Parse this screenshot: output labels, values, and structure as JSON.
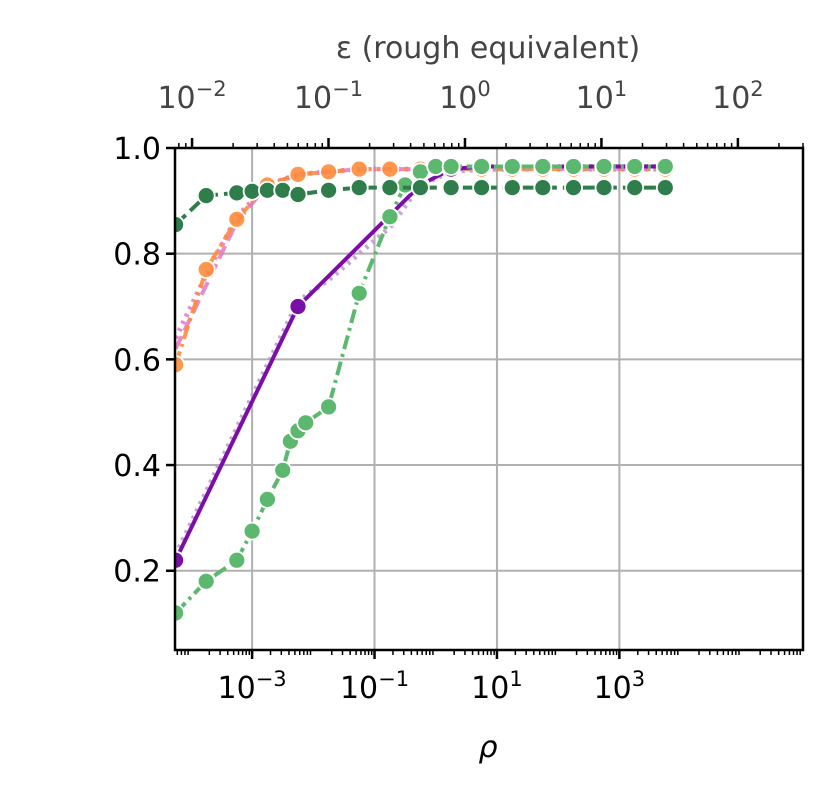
{
  "chart_data": {
    "type": "line",
    "title": "",
    "xlabel": "ρ",
    "ylabel": "",
    "top_xlabel": "ε (rough equivalent)",
    "x_scale": "log",
    "xlim": [
      5.5e-05,
      1000000
    ],
    "ylim": [
      0.05,
      1.0
    ],
    "x_ticks": [
      {
        "value": 0.001,
        "base": "10",
        "exp": "−3"
      },
      {
        "value": 0.1,
        "base": "10",
        "exp": "−1"
      },
      {
        "value": 10,
        "base": "10",
        "exp": "1"
      },
      {
        "value": 1000,
        "base": "10",
        "exp": "3"
      }
    ],
    "y_ticks": [
      {
        "value": 0.2,
        "label": "0.2"
      },
      {
        "value": 0.4,
        "label": "0.4"
      },
      {
        "value": 0.6,
        "label": "0.6"
      },
      {
        "value": 0.8,
        "label": "0.8"
      },
      {
        "value": 1.0,
        "label": "1.0"
      }
    ],
    "top_axis": {
      "scale": "log",
      "xlim": [
        0.0075,
        300
      ],
      "ticks": [
        {
          "value": 0.01,
          "base": "10",
          "exp": "−2"
        },
        {
          "value": 0.1,
          "base": "10",
          "exp": "−1"
        },
        {
          "value": 1,
          "base": "10",
          "exp": "0"
        },
        {
          "value": 10,
          "base": "10",
          "exp": "1"
        },
        {
          "value": 100,
          "base": "10",
          "exp": "2"
        }
      ]
    },
    "grid": true,
    "series": [
      {
        "color": "#e377c2",
        "line_style": "dashed",
        "alpha": 0.85,
        "x": [
          5.62e-05,
          0.000178,
          0.000562,
          0.00178,
          0.00562,
          0.0178,
          0.0562,
          0.178,
          0.562,
          1.78,
          5.62,
          17.8,
          56.2,
          178,
          562,
          1780,
          5620
        ],
        "y": [
          0.62,
          0.74,
          0.86,
          0.93,
          0.95,
          0.955,
          0.96,
          0.96,
          0.96,
          0.96,
          0.96,
          0.96,
          0.96,
          0.96,
          0.96,
          0.96,
          0.96
        ]
      },
      {
        "color": "#e377c2",
        "line_style": "dotted",
        "alpha": 0.85,
        "x": [
          5.62e-05,
          0.000178,
          0.000562,
          0.00178,
          0.00562,
          0.0178,
          0.0562,
          0.178,
          0.562,
          1.78,
          5.62,
          17.8,
          56.2,
          178,
          562,
          1780,
          5620
        ],
        "y": [
          0.64,
          0.76,
          0.87,
          0.93,
          0.95,
          0.955,
          0.96,
          0.96,
          0.96,
          0.96,
          0.96,
          0.96,
          0.96,
          0.96,
          0.96,
          0.96,
          0.96
        ]
      },
      {
        "color": "#ff8c3a",
        "line_style": "dashdot",
        "alpha": 0.9,
        "markers": true,
        "x": [
          5.62e-05,
          0.000178,
          0.000562,
          0.00178,
          0.00562,
          0.0178,
          0.0562,
          0.178,
          0.562,
          1.78,
          5.62,
          17.8,
          56.2,
          178,
          562,
          1780,
          5620
        ],
        "y": [
          0.59,
          0.77,
          0.865,
          0.93,
          0.95,
          0.955,
          0.96,
          0.96,
          0.96,
          0.96,
          0.96,
          0.96,
          0.96,
          0.96,
          0.96,
          0.96,
          0.96
        ]
      },
      {
        "color": "#c39bd3",
        "line_style": "dotted",
        "alpha": 0.9,
        "x": [
          5.62e-05,
          0.00562,
          0.0178,
          0.0562,
          0.178,
          0.562,
          1.78,
          5.62,
          17.8,
          56.2,
          178,
          562,
          1780,
          5620
        ],
        "y": [
          0.23,
          0.71,
          0.75,
          0.8,
          0.85,
          0.93,
          0.955,
          0.96,
          0.96,
          0.965,
          0.965,
          0.965,
          0.965,
          0.965
        ]
      },
      {
        "color": "#7a0fa8",
        "line_style": "solid",
        "alpha": 1.0,
        "markers": true,
        "x": [
          5.62e-05,
          0.00562,
          0.562,
          1.78,
          5.62,
          17.8,
          56.2,
          178,
          562,
          1780,
          5620
        ],
        "y": [
          0.22,
          0.7,
          0.93,
          0.96,
          0.965,
          0.965,
          0.965,
          0.965,
          0.965,
          0.965,
          0.965
        ]
      },
      {
        "color": "#5cb86e",
        "line_style": "dashdot",
        "alpha": 1.0,
        "markers": true,
        "x": [
          5.62e-05,
          0.000178,
          0.000562,
          0.001,
          0.00178,
          0.00316,
          0.00422,
          0.00562,
          0.0075,
          0.0178,
          0.0562,
          0.178,
          0.316,
          0.562,
          1.0,
          1.78,
          5.62,
          17.8,
          56.2,
          178,
          562,
          1780,
          5620
        ],
        "y": [
          0.12,
          0.18,
          0.22,
          0.275,
          0.335,
          0.39,
          0.445,
          0.465,
          0.48,
          0.51,
          0.725,
          0.87,
          0.93,
          0.955,
          0.965,
          0.965,
          0.965,
          0.965,
          0.965,
          0.965,
          0.965,
          0.965,
          0.965
        ]
      },
      {
        "color": "#2e7d4a",
        "line_style": "dashed",
        "alpha": 1.0,
        "markers": true,
        "x": [
          5.62e-05,
          0.000178,
          0.000562,
          0.001,
          0.00178,
          0.00316,
          0.00562,
          0.0178,
          0.0562,
          0.178,
          0.562,
          1.78,
          5.62,
          17.8,
          56.2,
          178,
          562,
          1780,
          5620
        ],
        "y": [
          0.855,
          0.91,
          0.915,
          0.918,
          0.92,
          0.92,
          0.912,
          0.92,
          0.925,
          0.925,
          0.925,
          0.925,
          0.925,
          0.925,
          0.925,
          0.925,
          0.925,
          0.925,
          0.925
        ]
      }
    ]
  }
}
